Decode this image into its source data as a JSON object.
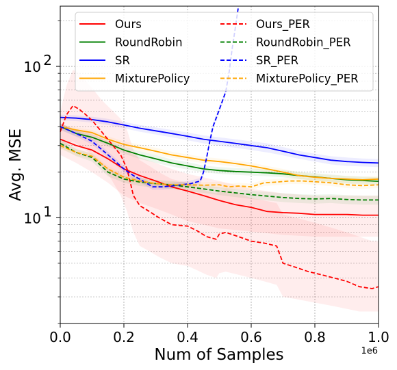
{
  "chart_data": {
    "type": "line",
    "xlabel": "Num of Samples",
    "ylabel": "Avg. MSE",
    "x_offset_label": "1e6",
    "x_scale_factor": 1000000,
    "xlim": [
      0,
      1000000
    ],
    "ylim": [
      2,
      250
    ],
    "yscale": "log",
    "grid": true,
    "legend_position": "top",
    "x_tick_values": [
      0,
      200000,
      400000,
      600000,
      800000,
      1000000
    ],
    "x_tick_labels": [
      "0.0",
      "0.2",
      "0.4",
      "0.6",
      "0.8",
      "1.0"
    ],
    "y_tick_values": [
      10,
      100
    ],
    "y_tick_labels": [
      {
        "base": "10",
        "exp": "1"
      },
      {
        "base": "10",
        "exp": "2"
      }
    ],
    "series": [
      {
        "name": "Ours",
        "color": "#ff0000",
        "dashed": false,
        "x": [
          0,
          50000,
          100000,
          150000,
          200000,
          250000,
          300000,
          350000,
          400000,
          450000,
          500000,
          550000,
          600000,
          650000,
          700000,
          750000,
          800000,
          850000,
          900000,
          950000,
          1000000
        ],
        "y": [
          33,
          30,
          28,
          24.5,
          21,
          19,
          17.5,
          16,
          15,
          14,
          13,
          12.2,
          11.7,
          11,
          10.8,
          10.7,
          10.5,
          10.5,
          10.5,
          10.4,
          10.4
        ],
        "band_low": [
          26,
          23,
          20,
          17,
          14,
          12.5,
          11.5,
          10.5,
          9.5,
          9,
          8.5,
          8.3,
          8.1,
          7.9,
          7.7,
          7.6,
          7.5,
          7.5,
          7.5,
          7.5,
          7.5
        ],
        "band_high": [
          42,
          38,
          36,
          32,
          28,
          25,
          23,
          21,
          19.5,
          18.5,
          17.5,
          16.5,
          15.5,
          15,
          14.5,
          14.2,
          14,
          14,
          14,
          14,
          14
        ]
      },
      {
        "name": "RoundRobin",
        "color": "#008000",
        "dashed": false,
        "x": [
          0,
          50000,
          100000,
          150000,
          200000,
          250000,
          300000,
          350000,
          400000,
          450000,
          500000,
          550000,
          600000,
          650000,
          700000,
          750000,
          800000,
          850000,
          900000,
          950000,
          1000000
        ],
        "y": [
          40,
          36,
          34,
          31,
          28,
          26,
          24.5,
          23,
          22,
          21,
          20.5,
          20.2,
          20,
          19.8,
          19.5,
          19,
          18.6,
          18.2,
          17.8,
          17.6,
          17.4
        ],
        "band_low": [
          38,
          34.5,
          32.5,
          29.5,
          26.5,
          24.5,
          23,
          21.8,
          20.8,
          20,
          19.5,
          19.2,
          19,
          18.8,
          18.5,
          18,
          17.6,
          17.2,
          16.8,
          16.6,
          16.4
        ],
        "band_high": [
          42,
          38,
          35.5,
          32.5,
          29.5,
          27.5,
          26,
          24.3,
          23.3,
          22.1,
          21.6,
          21.3,
          21.1,
          20.9,
          20.6,
          20.1,
          19.7,
          19.3,
          18.9,
          18.7,
          18.5
        ]
      },
      {
        "name": "SR",
        "color": "#0000ff",
        "dashed": false,
        "x": [
          0,
          50000,
          100000,
          150000,
          200000,
          250000,
          300000,
          350000,
          400000,
          450000,
          500000,
          550000,
          600000,
          650000,
          700000,
          750000,
          800000,
          850000,
          900000,
          950000,
          1000000
        ],
        "y": [
          46,
          45.5,
          44.5,
          43,
          41,
          39,
          37.5,
          36,
          34.5,
          33,
          32,
          31,
          30,
          29,
          27.5,
          26,
          25,
          24,
          23.5,
          23.2,
          23
        ],
        "band_low": [
          44,
          43.5,
          42.5,
          41,
          39,
          37,
          35.5,
          34,
          32.5,
          31,
          30,
          29,
          28,
          27,
          25.8,
          24.5,
          23.5,
          22.5,
          22,
          21.8,
          21.6
        ],
        "band_high": [
          48,
          47.5,
          46.5,
          45,
          43,
          41,
          39.5,
          38,
          36.5,
          35,
          34,
          33,
          32,
          31,
          29.3,
          27.6,
          26.5,
          25.5,
          25,
          24.6,
          24.4
        ]
      },
      {
        "name": "MixturePolicy",
        "color": "#ffa500",
        "dashed": false,
        "x": [
          0,
          50000,
          100000,
          150000,
          200000,
          250000,
          300000,
          350000,
          400000,
          450000,
          500000,
          550000,
          600000,
          650000,
          700000,
          750000,
          800000,
          850000,
          900000,
          950000,
          1000000
        ],
        "y": [
          40,
          38,
          36.5,
          33,
          30.5,
          29,
          27.5,
          26,
          25,
          24,
          23.5,
          22.8,
          22,
          21,
          20,
          19,
          18.5,
          18.2,
          18,
          17.8,
          18
        ],
        "band_low": [
          38.5,
          36.5,
          35,
          31.5,
          29,
          27.5,
          26,
          24.8,
          23.8,
          22.9,
          22.4,
          21.7,
          21,
          20,
          19,
          18.1,
          17.6,
          17.3,
          17.1,
          16.9,
          17.1
        ],
        "band_high": [
          41.5,
          39.5,
          38,
          34.5,
          32,
          30.5,
          29,
          27.3,
          26.2,
          25.2,
          24.6,
          23.9,
          23.1,
          22,
          21,
          20,
          19.4,
          19.1,
          18.9,
          18.7,
          18.9
        ]
      },
      {
        "name": "Ours_PER",
        "color": "#ff0000",
        "dashed": true,
        "x": [
          0,
          20000,
          40000,
          60000,
          80000,
          100000,
          130000,
          160000,
          190000,
          210000,
          230000,
          250000,
          280000,
          310000,
          350000,
          400000,
          430000,
          460000,
          490000,
          500000,
          520000,
          560000,
          600000,
          640000,
          680000,
          700000,
          740000,
          780000,
          820000,
          860000,
          900000,
          940000,
          980000,
          1000000
        ],
        "y": [
          37,
          48,
          55,
          52,
          48,
          44,
          37,
          31,
          26,
          21,
          14,
          12,
          11,
          10,
          9,
          8.8,
          8.2,
          7.5,
          7.2,
          7.8,
          8,
          7.5,
          7,
          6.8,
          6.5,
          5,
          4.7,
          4.4,
          4.2,
          4,
          3.8,
          3.5,
          3.4,
          3.5
        ],
        "band_low": [
          28,
          30,
          32,
          30,
          28,
          26,
          22,
          18,
          14,
          11,
          8,
          6.5,
          6,
          5.5,
          5,
          4.8,
          4.5,
          4.2,
          4,
          4.3,
          4.4,
          4.2,
          4,
          3.8,
          3.6,
          3,
          2.9,
          2.8,
          2.7,
          2.6,
          2.5,
          2.4,
          2.4,
          2.4
        ],
        "band_high": [
          50,
          75,
          95,
          90,
          80,
          72,
          60,
          52,
          45,
          38,
          28,
          24,
          22,
          20,
          18,
          17,
          16,
          15,
          14.5,
          15,
          15.5,
          14.5,
          13.5,
          13,
          12.5,
          10.5,
          10,
          9.5,
          9,
          8.5,
          8,
          7.5,
          7,
          7
        ]
      },
      {
        "name": "RoundRobin_PER",
        "color": "#008000",
        "dashed": true,
        "x": [
          0,
          50000,
          100000,
          150000,
          200000,
          250000,
          300000,
          350000,
          400000,
          450000,
          500000,
          550000,
          600000,
          650000,
          700000,
          750000,
          800000,
          850000,
          900000,
          950000,
          1000000
        ],
        "y": [
          31,
          27,
          25,
          20,
          18,
          17.2,
          16.8,
          16.5,
          16,
          15.5,
          15,
          14.6,
          14.2,
          13.9,
          13.6,
          13.4,
          13.3,
          13.4,
          13.2,
          13.1,
          13.1
        ],
        "band_low": [
          29,
          25.5,
          23.5,
          18.8,
          17,
          16.2,
          15.8,
          15.5,
          15,
          14.6,
          14.1,
          13.7,
          13.3,
          13,
          12.7,
          12.5,
          12.4,
          12.5,
          12.3,
          12.2,
          12.2
        ],
        "band_high": [
          33,
          28.5,
          26.5,
          21.2,
          19,
          18.2,
          17.8,
          17.5,
          17,
          16.4,
          15.9,
          15.5,
          15.1,
          14.8,
          14.5,
          14.3,
          14.2,
          14.3,
          14.1,
          14,
          14
        ]
      },
      {
        "name": "SR_PER",
        "color": "#0000ff",
        "dashed": true,
        "x": [
          0,
          50000,
          100000,
          150000,
          200000,
          230000,
          260000,
          290000,
          320000,
          350000,
          380000,
          410000,
          440000,
          450000,
          460000,
          470000,
          480000,
          500000,
          520000,
          530000,
          540000,
          550000,
          560000
        ],
        "y": [
          40,
          36,
          32,
          26,
          21,
          19,
          17.5,
          16,
          16,
          16.2,
          16.5,
          16.8,
          17.5,
          20,
          25,
          32,
          40,
          52,
          68,
          90,
          130,
          180,
          260
        ],
        "band_low": [
          38,
          34.3,
          30.5,
          24.8,
          20,
          18.1,
          16.7,
          15.3,
          15.3,
          15.5,
          15.8,
          16,
          16.7,
          19,
          23.8,
          30.5,
          38,
          49.5,
          65,
          86,
          124,
          170,
          245
        ],
        "band_high": [
          42,
          37.8,
          33.6,
          27.3,
          22,
          19.9,
          18.3,
          16.8,
          16.8,
          17,
          17.3,
          17.6,
          18.3,
          21,
          26.2,
          33.5,
          42,
          54.5,
          71,
          94,
          136,
          190,
          275
        ]
      },
      {
        "name": "MixturePolicy_PER",
        "color": "#ffa500",
        "dashed": true,
        "x": [
          0,
          50000,
          100000,
          150000,
          200000,
          250000,
          300000,
          350000,
          400000,
          450000,
          500000,
          530000,
          560000,
          600000,
          640000,
          680000,
          720000,
          760000,
          800000,
          850000,
          900000,
          950000,
          1000000
        ],
        "y": [
          30,
          27,
          25.5,
          21,
          18.5,
          17.5,
          16.8,
          16.5,
          16.5,
          16.4,
          16.5,
          16,
          16.2,
          16,
          17,
          17.2,
          17.5,
          17.5,
          17.3,
          17,
          16.5,
          16.3,
          16.5
        ],
        "band_low": [
          28.5,
          25.7,
          24.3,
          20,
          17.6,
          16.7,
          16,
          15.7,
          15.7,
          15.6,
          15.7,
          15.2,
          15.4,
          15.2,
          16.2,
          16.4,
          16.7,
          16.7,
          16.5,
          16.2,
          15.7,
          15.5,
          15.7
        ],
        "band_high": [
          31.5,
          28.3,
          26.7,
          22,
          19.4,
          18.3,
          17.6,
          17.3,
          17.3,
          17.2,
          17.3,
          16.8,
          17,
          16.8,
          17.8,
          18,
          18.3,
          18.3,
          18.1,
          17.8,
          17.3,
          17.1,
          17.3
        ]
      }
    ]
  }
}
